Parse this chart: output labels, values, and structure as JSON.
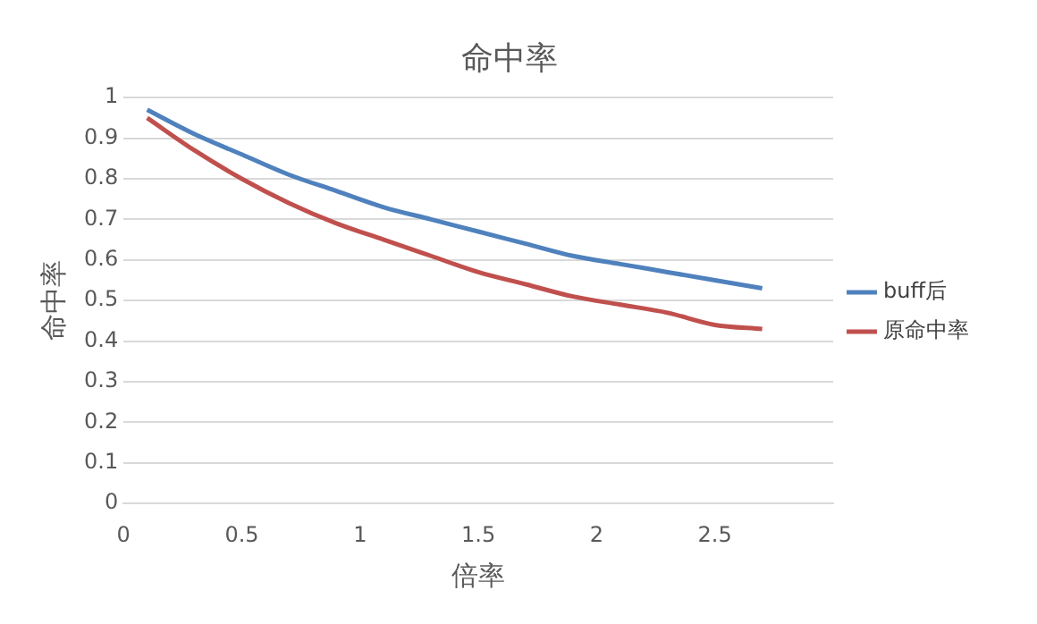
{
  "chart_data": {
    "type": "line",
    "title": "命中率",
    "xlabel": "倍率",
    "ylabel": "命中率",
    "x": [
      0.1,
      0.3,
      0.5,
      0.7,
      0.9,
      1.1,
      1.3,
      1.5,
      1.7,
      1.9,
      2.1,
      2.3,
      2.5,
      2.7
    ],
    "series": [
      {
        "name": "buff后",
        "color": "#4f81bd",
        "values": [
          0.97,
          0.91,
          0.86,
          0.81,
          0.77,
          0.73,
          0.7,
          0.67,
          0.64,
          0.61,
          0.59,
          0.57,
          0.55,
          0.53
        ]
      },
      {
        "name": "原命中率",
        "color": "#c0504d",
        "values": [
          0.95,
          0.87,
          0.8,
          0.74,
          0.69,
          0.65,
          0.61,
          0.57,
          0.54,
          0.51,
          0.49,
          0.47,
          0.44,
          0.43
        ]
      }
    ],
    "xlim": [
      0,
      3
    ],
    "xticks": [
      0,
      0.5,
      1,
      1.5,
      2,
      2.5
    ],
    "ylim": [
      0,
      1
    ],
    "yticks": [
      0,
      0.1,
      0.2,
      0.3,
      0.4,
      0.5,
      0.6,
      0.7,
      0.8,
      0.9,
      1
    ],
    "grid": "y",
    "legend": "right",
    "marker": "none",
    "line_style": "solid"
  }
}
